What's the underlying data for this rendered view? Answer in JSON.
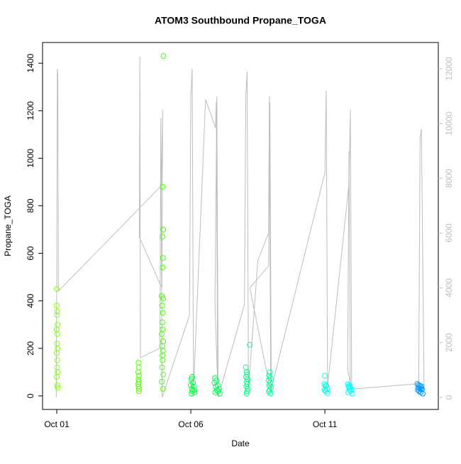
{
  "chart_data": {
    "type": "scatter",
    "title": "ATOM3 Southbound Propane_TOGA",
    "x_label": "Date",
    "y_label": "Propane_TOGA",
    "xlim": [
      -0.53,
      14.23
    ],
    "xticks": [
      {
        "value": 0,
        "label": "Oct 01"
      },
      {
        "value": 5,
        "label": "Oct 06"
      },
      {
        "value": 10,
        "label": "Oct 11"
      }
    ],
    "ylim": [
      -57,
      1487
    ],
    "yticks": [
      0,
      200,
      400,
      600,
      800,
      1000,
      1200,
      1400
    ],
    "y2lim": [
      -440,
      12960
    ],
    "y2ticks": [
      0,
      2000,
      4000,
      6000,
      8000,
      10000,
      12000
    ],
    "series": [
      {
        "style": "line",
        "axis": "y2",
        "color": "#bebebe",
        "x": [
          -0.02,
          0.0,
          0.02,
          0.04,
          0.06,
          0.08,
          3.9,
          3.95,
          3.92,
          3.08,
          3.1,
          3.12,
          3.85,
          3.88,
          3.93,
          4.95,
          5.0,
          5.05,
          5.1,
          5.55,
          5.92,
          5.95,
          6.0,
          5.9,
          5.97,
          6.02,
          7.0,
          7.05,
          7.1,
          7.15,
          7.5,
          7.9,
          7.93,
          7.98,
          7.2,
          7.9,
          7.95,
          8.0,
          10.0,
          10.05,
          10.1,
          10.9,
          10.95,
          11.0,
          10.85,
          10.9,
          10.95,
          13.5,
          13.55,
          13.6,
          13.7
        ],
        "values": [
          0,
          4500,
          12000,
          11800,
          3900,
          3900,
          7730,
          10500,
          4000,
          5850,
          12440,
          1450,
          1800,
          10200,
          0,
          3000,
          11000,
          12000,
          300,
          10880,
          9850,
          10800,
          500,
          3400,
          11000,
          0,
          3400,
          11000,
          11900,
          300,
          5000,
          6000,
          11000,
          200,
          4000,
          4800,
          10800,
          300,
          8200,
          11200,
          400,
          7800,
          10500,
          300,
          1000,
          9000,
          300,
          500,
          9500,
          9800,
          300
        ]
      },
      {
        "style": "points",
        "color": "#80ff00",
        "x": [
          0.0,
          0.0,
          0.02,
          0.01,
          0.03,
          0.0,
          0.02,
          0.01,
          0.03,
          0.0,
          0.02,
          0.01,
          0.04,
          0.0,
          0.02,
          0.03
        ],
        "values": [
          450,
          380,
          355,
          340,
          300,
          280,
          260,
          220,
          200,
          180,
          150,
          120,
          100,
          80,
          45,
          35
        ]
      },
      {
        "style": "points",
        "color": "#55ff00",
        "x": [
          3.05,
          3.06,
          3.04,
          3.07,
          3.05,
          3.06,
          3.04,
          3.05,
          3.07,
          3.06
        ],
        "values": [
          140,
          120,
          100,
          85,
          70,
          60,
          50,
          40,
          30,
          20
        ]
      },
      {
        "style": "points",
        "color": "#40ff00",
        "x": [
          3.98,
          3.95,
          3.97,
          3.94,
          3.96,
          3.95,
          3.92,
          3.97,
          3.93,
          3.96,
          3.94,
          3.95,
          3.92,
          3.97,
          3.93,
          3.96,
          3.94,
          3.95,
          3.93,
          3.97,
          3.92,
          3.96
        ],
        "values": [
          1430,
          880,
          700,
          670,
          580,
          540,
          420,
          410,
          380,
          350,
          310,
          280,
          260,
          230,
          210,
          190,
          170,
          150,
          120,
          90,
          60,
          30
        ]
      },
      {
        "style": "points",
        "color": "#00ff40",
        "x": [
          5.05,
          5.02,
          5.08,
          5.0,
          5.1,
          5.04,
          5.12,
          5.06,
          5.14,
          5.03
        ],
        "values": [
          80,
          70,
          55,
          45,
          40,
          30,
          25,
          20,
          15,
          10
        ]
      },
      {
        "style": "points",
        "color": "#00ff55",
        "x": [
          5.9,
          5.95,
          5.88,
          6.0,
          5.93,
          6.05,
          5.97,
          6.02,
          5.91,
          6.08
        ],
        "values": [
          75,
          65,
          55,
          45,
          38,
          30,
          25,
          20,
          15,
          10
        ]
      },
      {
        "style": "points",
        "color": "#00ff80",
        "x": [
          7.2,
          7.05,
          7.08,
          7.1,
          7.06,
          7.12,
          7.09,
          7.11,
          7.07,
          7.13,
          7.1,
          7.08
        ],
        "values": [
          215,
          120,
          100,
          90,
          80,
          70,
          60,
          50,
          40,
          30,
          20,
          10
        ]
      },
      {
        "style": "points",
        "color": "#00ff99",
        "x": [
          7.95,
          7.92,
          7.98,
          7.9,
          7.96,
          7.93,
          7.99,
          7.94,
          7.91,
          7.97
        ],
        "values": [
          100,
          85,
          75,
          65,
          55,
          45,
          35,
          25,
          18,
          10
        ]
      },
      {
        "style": "points",
        "color": "#00ffdd",
        "x": [
          10.0,
          9.98,
          10.05,
          10.02,
          10.08,
          9.99,
          10.04,
          10.1
        ],
        "values": [
          85,
          50,
          45,
          40,
          30,
          25,
          20,
          12
        ]
      },
      {
        "style": "points",
        "color": "#00ffff",
        "x": [
          10.85,
          10.9,
          10.95,
          10.88,
          10.93,
          11.0,
          10.92,
          10.97,
          10.87,
          11.02
        ],
        "values": [
          50,
          45,
          40,
          38,
          33,
          28,
          24,
          20,
          15,
          10
        ]
      },
      {
        "style": "points",
        "color": "#0099ff",
        "x": [
          13.45,
          13.5,
          13.55,
          13.6,
          13.48,
          13.53,
          13.58,
          13.62,
          13.47,
          13.52,
          13.57,
          13.65
        ],
        "values": [
          50,
          45,
          42,
          40,
          35,
          32,
          30,
          28,
          25,
          20,
          15,
          10
        ]
      }
    ]
  }
}
